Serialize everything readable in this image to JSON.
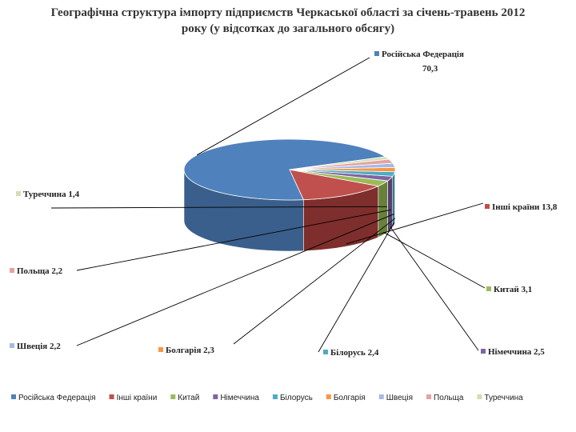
{
  "chart_data": {
    "type": "pie",
    "title_line1": "Географічна структура імпорту підприємств Черкаської області за  січень-травень 2012",
    "title_line2": "року  (у відсотках до загального обсягу)",
    "slices": [
      {
        "name": "Російська Федерація",
        "value": 70.3,
        "label": "Російська Федерація",
        "value_text": "70,3",
        "color": "#4F81BD",
        "side": "#3A5F8C"
      },
      {
        "name": "Інші країни",
        "value": 13.8,
        "label": "Інші країни 13,8",
        "color": "#C0504D",
        "side": "#7E2E2C"
      },
      {
        "name": "Китай",
        "value": 3.1,
        "label": "Китай 3,1",
        "color": "#9BBB59",
        "side": "#67813A"
      },
      {
        "name": "Німеччина",
        "value": 2.5,
        "label": "Німеччина 2,5",
        "color": "#8064A2",
        "side": "#56406E"
      },
      {
        "name": "Білорусь",
        "value": 2.4,
        "label": "Білорусь 2,4",
        "color": "#4BACC6",
        "side": "#2F7688"
      },
      {
        "name": "Болгарія",
        "value": 2.3,
        "label": "Болгарія 2,3",
        "color": "#F79646",
        "side": "#B56A2C"
      },
      {
        "name": "Швеція",
        "value": 2.2,
        "label": "Швеція 2,2",
        "color": "#A7B9E3",
        "side": "#7384AA"
      },
      {
        "name": "Польща",
        "value": 2.2,
        "label": "Польща 2,2",
        "color": "#E4A3A0",
        "side": "#A8706D"
      },
      {
        "name": "Туреччина",
        "value": 1.4,
        "label": "Туреччина 1,4",
        "color": "#D2DFB2",
        "side": "#97A67A"
      }
    ],
    "legend_position": "bottom"
  }
}
